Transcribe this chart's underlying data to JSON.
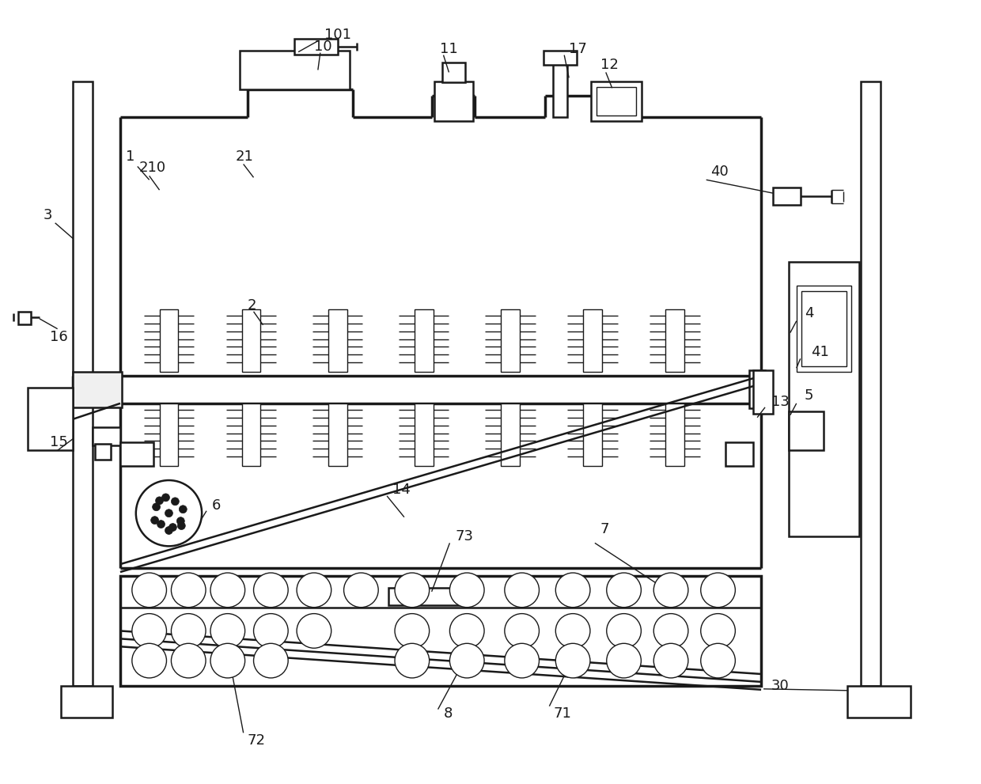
{
  "bg_color": "#ffffff",
  "lc": "#1a1a1a",
  "lw": 1.8,
  "tlw": 1.0,
  "thickw": 2.5,
  "fig_width": 12.4,
  "fig_height": 9.91
}
